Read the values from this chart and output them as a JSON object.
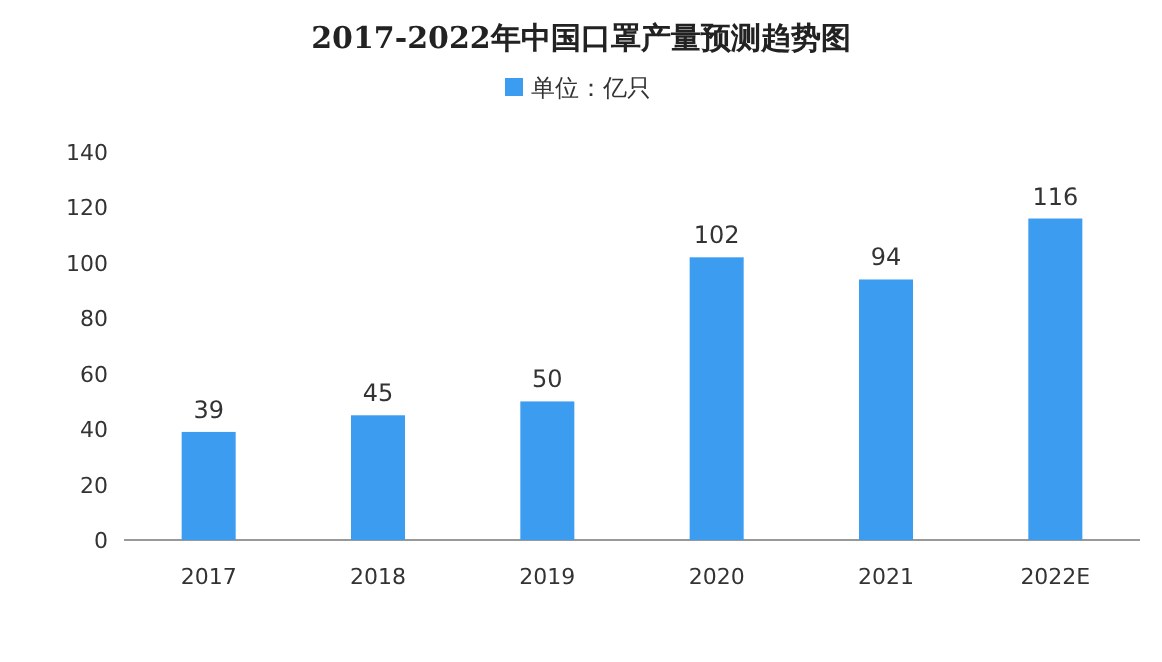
{
  "chart_data": {
    "type": "bar",
    "title": "2017-2022年中国口罩产量预测趋势图",
    "categories": [
      "2017",
      "2018",
      "2019",
      "2020",
      "2021",
      "2022E"
    ],
    "series": [
      {
        "name": "单位：亿只",
        "color": "#3b9cf0",
        "values": [
          39,
          45,
          50,
          102,
          94,
          116
        ]
      }
    ],
    "ylim": [
      0,
      140
    ],
    "yticks": [
      0,
      20,
      40,
      60,
      80,
      100,
      120,
      140
    ],
    "data_labels": true,
    "legend": "top",
    "grid": false
  }
}
